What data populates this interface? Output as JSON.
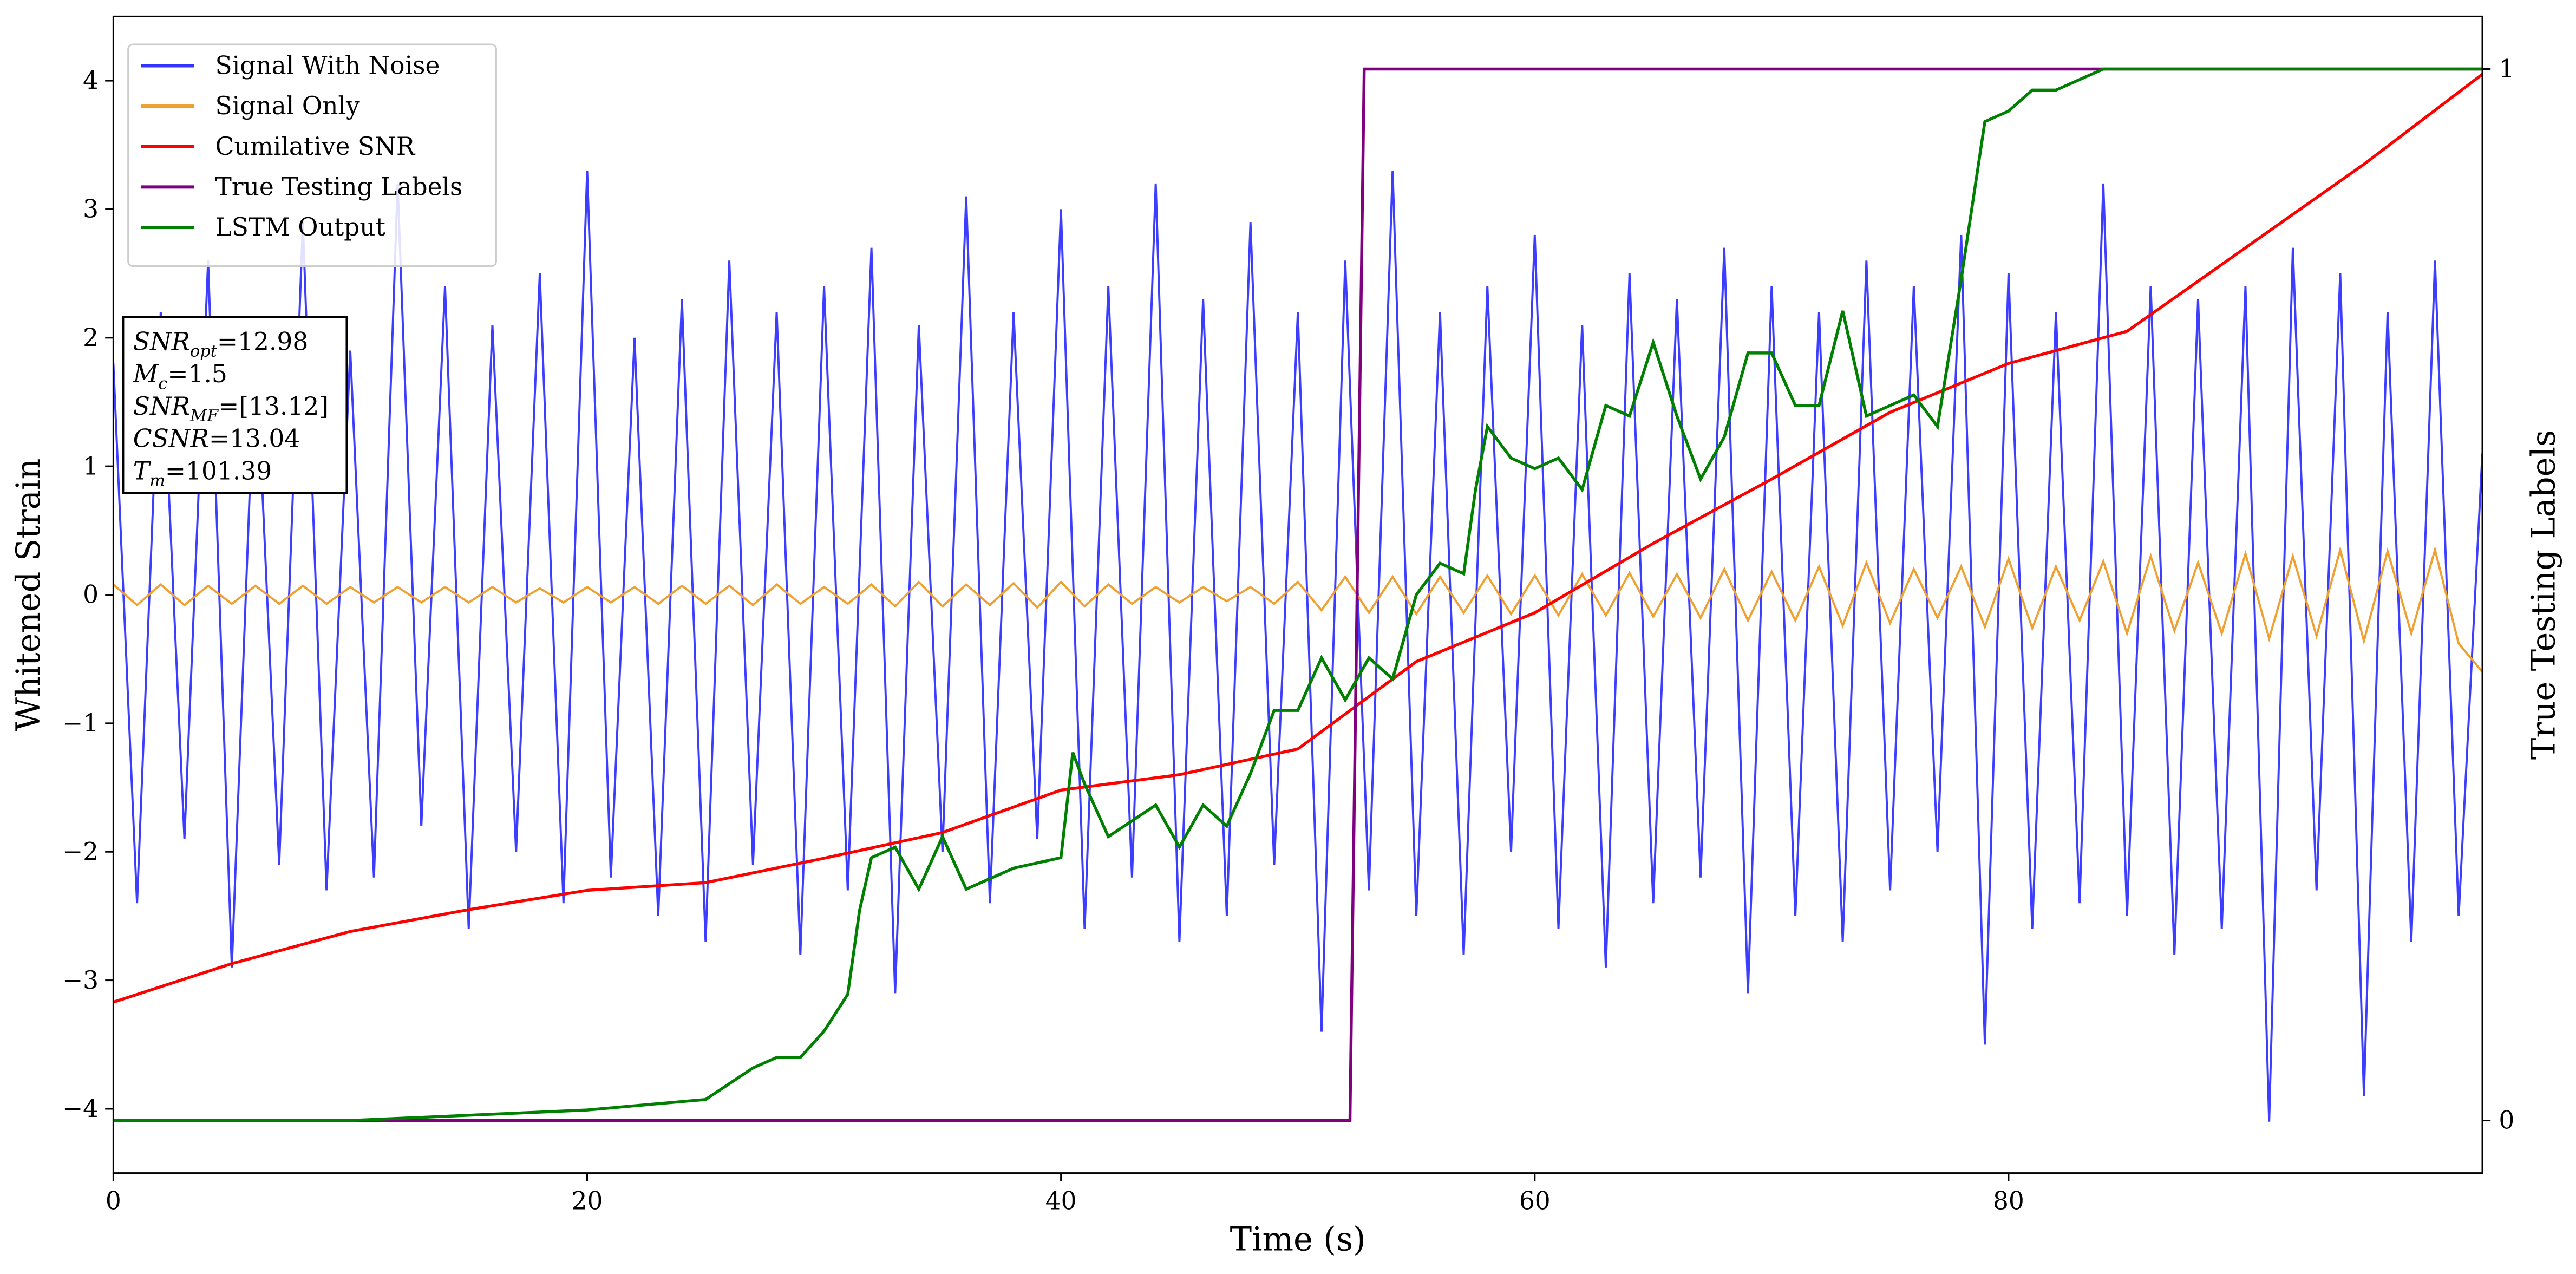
{
  "chart_data": {
    "type": "line",
    "xlabel": "Time (s)",
    "ylabel": "Whitened Strain",
    "y2label": "True Testing Labels",
    "xlim": [
      0,
      100
    ],
    "xticks": [
      0,
      20,
      40,
      60,
      80
    ],
    "ylim": [
      -4.5,
      4.5
    ],
    "yticks": [
      {
        "value": -4,
        "label": "−4"
      },
      {
        "value": -3,
        "label": "−3"
      },
      {
        "value": -2,
        "label": "−2"
      },
      {
        "value": -1,
        "label": "−1"
      },
      0,
      1,
      2,
      3,
      4
    ],
    "y2lim": [
      -0.05,
      1.05
    ],
    "y2ticks": [
      0,
      1
    ],
    "legend": "upper left",
    "annotation": [
      {
        "main": "SNR",
        "sub": "opt",
        "rest": "=12.98"
      },
      {
        "main": "M",
        "sub": "c",
        "rest": "=1.5"
      },
      {
        "main": "SNR",
        "sub": "MF",
        "rest": "=[13.12]"
      },
      {
        "main": "CSNR",
        "rest": "=13.04"
      },
      {
        "main": "T",
        "sub": "m",
        "rest": "=101.39"
      }
    ],
    "series": [
      {
        "name": "Signal With Noise",
        "color": "#3333ff",
        "x": [
          0,
          1,
          2,
          3,
          4,
          5,
          6,
          7,
          8,
          9,
          10,
          11,
          12,
          13,
          14,
          15,
          16,
          17,
          18,
          19,
          20,
          21,
          22,
          23,
          24,
          25,
          26,
          27,
          28,
          29,
          30,
          31,
          32,
          33,
          34,
          35,
          36,
          37,
          38,
          39,
          40,
          41,
          42,
          43,
          44,
          45,
          46,
          47,
          48,
          49,
          50,
          51,
          52,
          53,
          54,
          55,
          56,
          57,
          58,
          59,
          60,
          61,
          62,
          63,
          64,
          65,
          66,
          67,
          68,
          69,
          70,
          71,
          72,
          73,
          74,
          75,
          76,
          77,
          78,
          79,
          80,
          81,
          82,
          83,
          84,
          85,
          86,
          87,
          88,
          89,
          90,
          91,
          92,
          93,
          94,
          95,
          96,
          97,
          98,
          99,
          100
        ],
        "values": [
          1.8,
          -2.4,
          2.2,
          -1.9,
          2.6,
          -2.9,
          2.0,
          -2.1,
          2.9,
          -2.3,
          1.9,
          -2.2,
          3.2,
          -1.8,
          2.4,
          -2.6,
          2.1,
          -2.0,
          2.5,
          -2.4,
          3.3,
          -2.2,
          2.0,
          -2.5,
          2.3,
          -2.7,
          2.6,
          -2.1,
          2.2,
          -2.8,
          2.4,
          -2.3,
          2.7,
          -3.1,
          2.1,
          -2.0,
          3.1,
          -2.4,
          2.2,
          -1.9,
          3.0,
          -2.6,
          2.4,
          -2.2,
          3.2,
          -2.7,
          2.3,
          -2.5,
          2.9,
          -2.1,
          2.2,
          -3.4,
          2.6,
          -2.3,
          3.3,
          -2.5,
          2.2,
          -2.8,
          2.4,
          -2.0,
          2.8,
          -2.6,
          2.1,
          -2.9,
          2.5,
          -2.4,
          2.3,
          -2.2,
          2.7,
          -3.1,
          2.4,
          -2.5,
          2.2,
          -2.7,
          2.6,
          -2.3,
          2.4,
          -2.0,
          2.8,
          -3.5,
          2.5,
          -2.6,
          2.2,
          -2.4,
          3.2,
          -2.5,
          2.4,
          -2.8,
          2.3,
          -2.6,
          2.4,
          -4.1,
          2.7,
          -2.3,
          2.5,
          -3.9,
          2.2,
          -2.7,
          2.6,
          -2.5,
          1.1
        ]
      },
      {
        "name": "Signal Only",
        "color": "#f0a030",
        "x": [
          0,
          1,
          2,
          3,
          4,
          5,
          6,
          7,
          8,
          9,
          10,
          11,
          12,
          13,
          14,
          15,
          16,
          17,
          18,
          19,
          20,
          21,
          22,
          23,
          24,
          25,
          26,
          27,
          28,
          29,
          30,
          31,
          32,
          33,
          34,
          35,
          36,
          37,
          38,
          39,
          40,
          41,
          42,
          43,
          44,
          45,
          46,
          47,
          48,
          49,
          50,
          51,
          52,
          53,
          54,
          55,
          56,
          57,
          58,
          59,
          60,
          61,
          62,
          63,
          64,
          65,
          66,
          67,
          68,
          69,
          70,
          71,
          72,
          73,
          74,
          75,
          76,
          77,
          78,
          79,
          80,
          81,
          82,
          83,
          84,
          85,
          86,
          87,
          88,
          89,
          90,
          91,
          92,
          93,
          94,
          95,
          96,
          97,
          98,
          99,
          100
        ],
        "values": [
          0.08,
          -0.08,
          0.08,
          -0.08,
          0.07,
          -0.07,
          0.07,
          -0.07,
          0.07,
          -0.07,
          0.06,
          -0.06,
          0.06,
          -0.06,
          0.06,
          -0.06,
          0.06,
          -0.06,
          0.05,
          -0.06,
          0.06,
          -0.06,
          0.06,
          -0.07,
          0.07,
          -0.07,
          0.07,
          -0.08,
          0.08,
          -0.07,
          0.06,
          -0.07,
          0.08,
          -0.09,
          0.1,
          -0.09,
          0.08,
          -0.08,
          0.09,
          -0.1,
          0.1,
          -0.09,
          0.08,
          -0.07,
          0.06,
          -0.06,
          0.06,
          -0.05,
          0.06,
          -0.07,
          0.1,
          -0.12,
          0.14,
          -0.14,
          0.14,
          -0.15,
          0.14,
          -0.14,
          0.15,
          -0.15,
          0.15,
          -0.16,
          0.16,
          -0.16,
          0.17,
          -0.17,
          0.16,
          -0.18,
          0.2,
          -0.2,
          0.18,
          -0.2,
          0.22,
          -0.24,
          0.25,
          -0.22,
          0.2,
          -0.18,
          0.22,
          -0.25,
          0.28,
          -0.26,
          0.22,
          -0.2,
          0.26,
          -0.3,
          0.3,
          -0.28,
          0.25,
          -0.3,
          0.32,
          -0.34,
          0.3,
          -0.32,
          0.35,
          -0.36,
          0.34,
          -0.3,
          0.35,
          -0.38,
          -0.6
        ]
      },
      {
        "name": "Cumilative SNR",
        "color": "#ff0000",
        "x": [
          0,
          5,
          10,
          15,
          20,
          25,
          30,
          35,
          40,
          45,
          50,
          55,
          60,
          65,
          70,
          75,
          80,
          85,
          90,
          95,
          100
        ],
        "values": [
          -3.17,
          -2.87,
          -2.62,
          -2.45,
          -2.3,
          -2.24,
          -2.05,
          -1.85,
          -1.52,
          -1.4,
          -1.2,
          -0.52,
          -0.14,
          0.4,
          0.9,
          1.42,
          1.8,
          2.05,
          2.7,
          3.35,
          4.05
        ]
      },
      {
        "name": "True Testing Labels",
        "color": "#800080",
        "axis": "y2",
        "x": [
          0,
          52.2,
          52.8,
          100
        ],
        "values": [
          0,
          0,
          1,
          1
        ]
      },
      {
        "name": "LSTM Output",
        "color": "#008000",
        "axis": "y2",
        "x": [
          0,
          10,
          15,
          20,
          25,
          27,
          28,
          29,
          30,
          31,
          31.5,
          32,
          33,
          34,
          35,
          36,
          38,
          40,
          40.5,
          41,
          42,
          44,
          45,
          46,
          47,
          48,
          49,
          50,
          51,
          52,
          53,
          54,
          55,
          56,
          57,
          57.5,
          58,
          59,
          60,
          61,
          62,
          63,
          64,
          65,
          66,
          67,
          68,
          69,
          70,
          71,
          72,
          73,
          74,
          75,
          76,
          77,
          78,
          79,
          80,
          81,
          82,
          84,
          87,
          100
        ],
        "values": [
          0,
          0,
          0.005,
          0.01,
          0.02,
          0.05,
          0.06,
          0.06,
          0.085,
          0.12,
          0.2,
          0.25,
          0.26,
          0.22,
          0.27,
          0.22,
          0.24,
          0.25,
          0.35,
          0.32,
          0.27,
          0.3,
          0.26,
          0.3,
          0.28,
          0.33,
          0.39,
          0.39,
          0.44,
          0.4,
          0.44,
          0.42,
          0.5,
          0.53,
          0.52,
          0.6,
          0.66,
          0.63,
          0.62,
          0.63,
          0.6,
          0.68,
          0.67,
          0.74,
          0.67,
          0.61,
          0.65,
          0.73,
          0.73,
          0.68,
          0.68,
          0.77,
          0.67,
          0.68,
          0.69,
          0.66,
          0.8,
          0.95,
          0.96,
          0.98,
          0.98,
          1.0,
          1.0,
          1.0
        ]
      }
    ]
  }
}
